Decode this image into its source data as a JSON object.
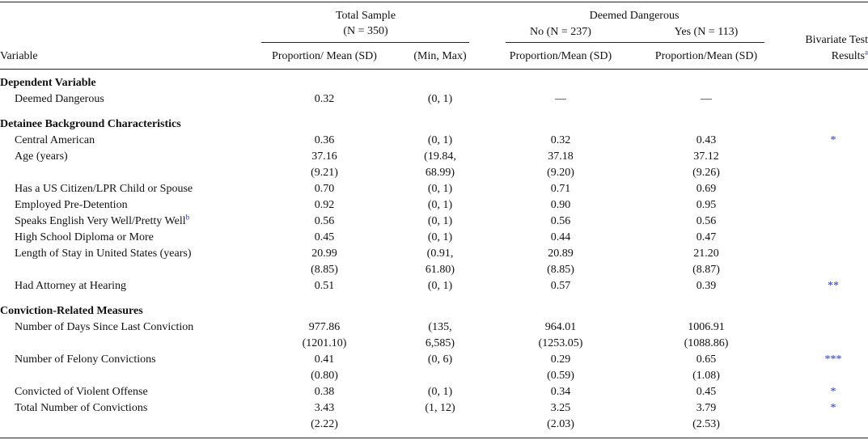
{
  "header": {
    "total_sample": "Total Sample",
    "total_n": "(N = 350)",
    "deemed": "Deemed Dangerous",
    "no": "No (N = 237)",
    "yes": "Yes (N = 113)",
    "variable": "Variable",
    "col1": "Proportion/ Mean (SD)",
    "col2": "(Min, Max)",
    "col3": "Proportion/Mean (SD)",
    "col4": "Proportion/Mean (SD)",
    "bivariate": "Bivariate Test",
    "results": "Results",
    "results_sup": "a"
  },
  "sections": [
    {
      "title": "Dependent Variable",
      "rows": [
        [
          "Deemed Dangerous",
          "0.32",
          "(0, 1)",
          "—",
          "—",
          null
        ]
      ]
    },
    {
      "title": "Detainee Background Characteristics",
      "rows": [
        [
          "Central American",
          "0.36",
          "(0, 1)",
          "0.32",
          "0.43",
          "*"
        ],
        [
          "Age (years)",
          [
            "37.16",
            "(9.21)"
          ],
          [
            "(19.84,",
            "68.99)"
          ],
          [
            "37.18",
            "(9.20)"
          ],
          [
            "37.12",
            "(9.26)"
          ],
          null
        ],
        [
          "Has a US Citizen/LPR Child or Spouse",
          "0.70",
          "(0, 1)",
          "0.71",
          "0.69",
          null
        ],
        [
          "Employed Pre-Detention",
          "0.92",
          "(0, 1)",
          "0.90",
          "0.95",
          null
        ],
        [
          {
            "text": "Speaks English Very Well/Pretty Well",
            "sup": "b"
          },
          "0.56",
          "(0, 1)",
          "0.56",
          "0.56",
          null
        ],
        [
          "High School Diploma or More",
          "0.45",
          "(0, 1)",
          "0.44",
          "0.47",
          null
        ],
        [
          "Length of Stay in United States (years)",
          [
            "20.99",
            "(8.85)"
          ],
          [
            "(0.91,",
            "61.80)"
          ],
          [
            "20.89",
            "(8.85)"
          ],
          [
            "21.20",
            "(8.87)"
          ],
          null
        ],
        [
          "Had Attorney at Hearing",
          "0.51",
          "(0, 1)",
          "0.57",
          "0.39",
          "**"
        ]
      ]
    },
    {
      "title": "Conviction-Related Measures",
      "rows": [
        [
          "Number of Days Since Last Conviction",
          [
            "977.86",
            "(1201.10)"
          ],
          [
            "(135,",
            "6,585)"
          ],
          [
            "964.01",
            "(1253.05)"
          ],
          [
            "1006.91",
            "(1088.86)"
          ],
          null
        ],
        [
          "Number of Felony Convictions",
          [
            "0.41",
            "(0.80)"
          ],
          "(0, 6)",
          [
            "0.29",
            "(0.59)"
          ],
          [
            "0.65",
            "(1.08)"
          ],
          "***"
        ],
        [
          "Convicted of Violent Offense",
          "0.38",
          "(0, 1)",
          "0.34",
          "0.45",
          "*"
        ],
        [
          "Total Number of Convictions",
          [
            "3.43",
            "(2.22)"
          ],
          "(1, 12)",
          [
            "3.25",
            "(2.03)"
          ],
          [
            "3.79",
            "(2.53)"
          ],
          "*"
        ]
      ]
    }
  ]
}
